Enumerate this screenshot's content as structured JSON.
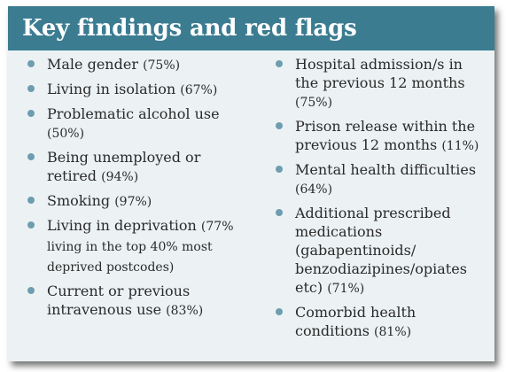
{
  "title": "Key findings and red flags",
  "colors": {
    "header_bg": "#3b7c91",
    "card_bg": "#ecf2f4",
    "bullet": "#6e9db0"
  },
  "left_items": [
    {
      "text": "Male gender",
      "pct": "(75%)"
    },
    {
      "text": "Living in isolation",
      "pct": "(67%)"
    },
    {
      "text": "Problematic alcohol use",
      "pct": "(50%)"
    },
    {
      "text": "Being unemployed or retired",
      "pct": "(94%)"
    },
    {
      "text": "Smoking",
      "pct": "(97%)"
    },
    {
      "text": "Living in deprivation",
      "pct": "(77% living in the top 40% most deprived postcodes)"
    },
    {
      "text": "Current or previous intravenous use",
      "pct": "(83%)"
    }
  ],
  "right_items": [
    {
      "text": "Hospital admission/s in the previous 12 months",
      "pct": "(75%)"
    },
    {
      "text": "Prison release within the previous 12 months",
      "pct": "(11%)"
    },
    {
      "text": "Mental health difficulties",
      "pct": "(64%)"
    },
    {
      "text": "Additional prescribed medications (gabapentinoids/ benzodiazipines/opiates etc)",
      "pct": "(71%)"
    },
    {
      "text": "Comorbid health conditions",
      "pct": "(81%)"
    }
  ]
}
